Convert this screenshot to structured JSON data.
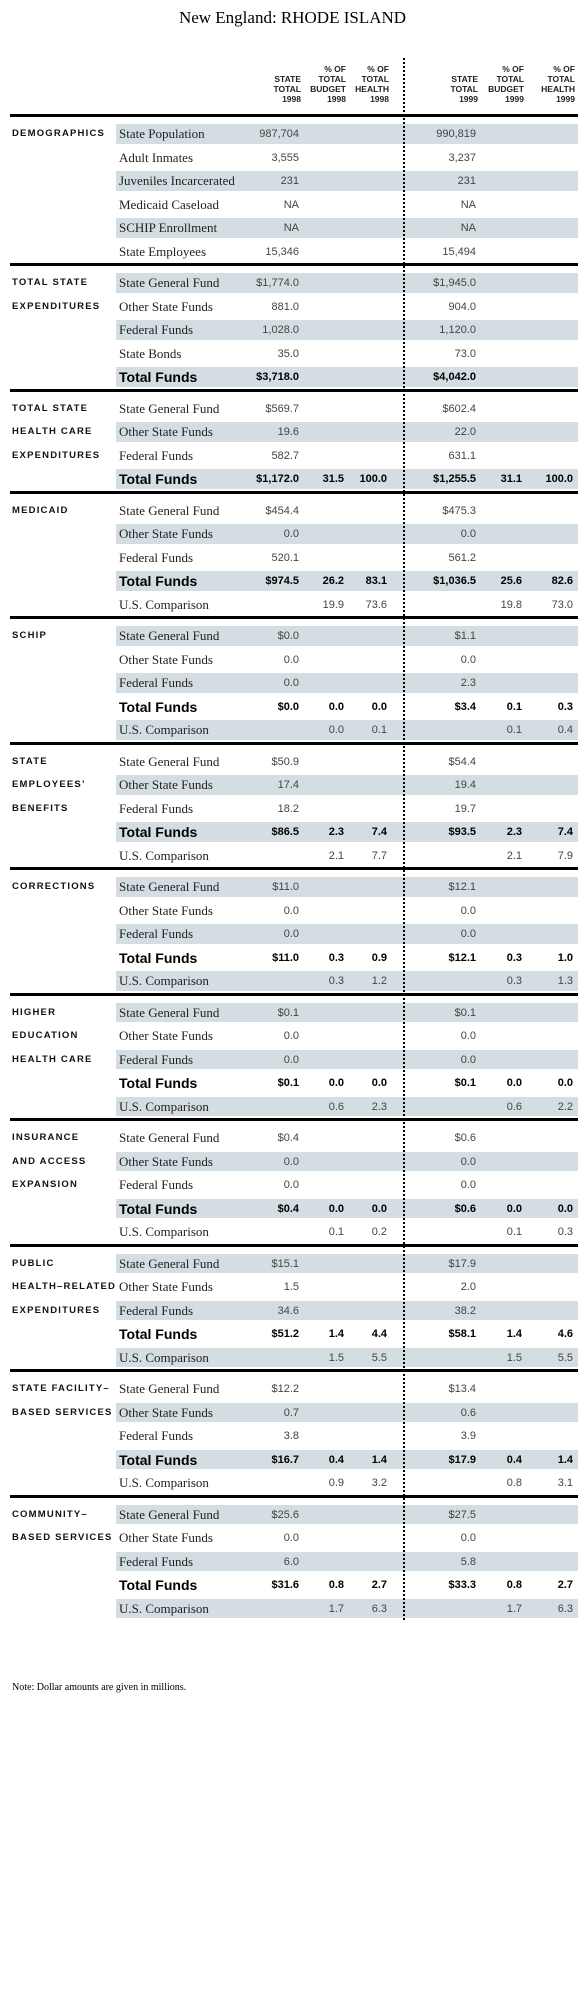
{
  "header": {
    "title": "New England: RHODE ISLAND",
    "columns": [
      [
        "STATE",
        "TOTAL",
        "1998"
      ],
      [
        "% OF",
        "TOTAL",
        "BUDGET",
        "1998"
      ],
      [
        "% OF",
        "TOTAL",
        "HEALTH",
        "1998"
      ],
      [
        "STATE",
        "TOTAL",
        "1999"
      ],
      [
        "% OF",
        "TOTAL",
        "BUDGET",
        "1999"
      ],
      [
        "% OF",
        "TOTAL",
        "HEALTH",
        "1999"
      ]
    ]
  },
  "sections": [
    {
      "label": [
        "DEMOGRAPHICS"
      ],
      "rows": [
        {
          "label": "State Population",
          "shaded": true,
          "cells": [
            "987,704",
            null,
            null,
            "990,819",
            null,
            null
          ]
        },
        {
          "label": "Adult Inmates",
          "shaded": false,
          "cells": [
            "3,555",
            null,
            null,
            "3,237",
            null,
            null
          ]
        },
        {
          "label": "Juveniles Incarcerated",
          "shaded": true,
          "cells": [
            "231",
            null,
            null,
            "231",
            null,
            null
          ]
        },
        {
          "label": "Medicaid Caseload",
          "shaded": false,
          "cells": [
            "NA",
            null,
            null,
            "NA",
            null,
            null
          ]
        },
        {
          "label": "SCHIP Enrollment",
          "shaded": true,
          "cells": [
            "NA",
            null,
            null,
            "NA",
            null,
            null
          ]
        },
        {
          "label": "State Employees",
          "shaded": false,
          "cells": [
            "15,346",
            null,
            null,
            "15,494",
            null,
            null
          ]
        }
      ]
    },
    {
      "label": [
        "TOTAL STATE",
        "EXPENDITURES"
      ],
      "rows": [
        {
          "label": "State General Fund",
          "shaded": true,
          "cells": [
            "$1,774.0",
            null,
            null,
            "$1,945.0",
            null,
            null
          ]
        },
        {
          "label": "Other State Funds",
          "shaded": false,
          "cells": [
            "881.0",
            null,
            null,
            "904.0",
            null,
            null
          ]
        },
        {
          "label": "Federal Funds",
          "shaded": true,
          "cells": [
            "1,028.0",
            null,
            null,
            "1,120.0",
            null,
            null
          ]
        },
        {
          "label": "State Bonds",
          "shaded": false,
          "cells": [
            "35.0",
            null,
            null,
            "73.0",
            null,
            null
          ]
        },
        {
          "label": "Total Funds",
          "shaded": true,
          "total": true,
          "cells": [
            "$3,718.0",
            null,
            null,
            "$4,042.0",
            null,
            null
          ]
        }
      ]
    },
    {
      "label": [
        "TOTAL STATE",
        "HEALTH CARE",
        "EXPENDITURES"
      ],
      "rows": [
        {
          "label": "State General Fund",
          "shaded": false,
          "cells": [
            "$569.7",
            null,
            null,
            "$602.4",
            null,
            null
          ]
        },
        {
          "label": "Other State Funds",
          "shaded": true,
          "cells": [
            "19.6",
            null,
            null,
            "22.0",
            null,
            null
          ]
        },
        {
          "label": "Federal Funds",
          "shaded": false,
          "cells": [
            "582.7",
            null,
            null,
            "631.1",
            null,
            null
          ]
        },
        {
          "label": "Total Funds",
          "shaded": true,
          "total": true,
          "cells": [
            "$1,172.0",
            "31.5",
            "100.0",
            "$1,255.5",
            "31.1",
            "100.0"
          ]
        }
      ]
    },
    {
      "label": [
        "MEDICAID"
      ],
      "rows": [
        {
          "label": "State General Fund",
          "shaded": false,
          "cells": [
            "$454.4",
            null,
            null,
            "$475.3",
            null,
            null
          ]
        },
        {
          "label": "Other State Funds",
          "shaded": true,
          "cells": [
            "0.0",
            null,
            null,
            "0.0",
            null,
            null
          ]
        },
        {
          "label": "Federal Funds",
          "shaded": false,
          "cells": [
            "520.1",
            null,
            null,
            "561.2",
            null,
            null
          ]
        },
        {
          "label": "Total Funds",
          "shaded": true,
          "total": true,
          "cells": [
            "$974.5",
            "26.2",
            "83.1",
            "$1,036.5",
            "25.6",
            "82.6"
          ]
        },
        {
          "label": "U.S. Comparison",
          "shaded": false,
          "cells": [
            null,
            "19.9",
            "73.6",
            null,
            "19.8",
            "73.0"
          ]
        }
      ]
    },
    {
      "label": [
        "SCHIP"
      ],
      "rows": [
        {
          "label": "State General Fund",
          "shaded": true,
          "cells": [
            "$0.0",
            null,
            null,
            "$1.1",
            null,
            null
          ]
        },
        {
          "label": "Other State Funds",
          "shaded": false,
          "cells": [
            "0.0",
            null,
            null,
            "0.0",
            null,
            null
          ]
        },
        {
          "label": "Federal Funds",
          "shaded": true,
          "cells": [
            "0.0",
            null,
            null,
            "2.3",
            null,
            null
          ]
        },
        {
          "label": "Total Funds",
          "shaded": false,
          "total": true,
          "cells": [
            "$0.0",
            "0.0",
            "0.0",
            "$3.4",
            "0.1",
            "0.3"
          ]
        },
        {
          "label": "U.S. Comparison",
          "shaded": true,
          "cells": [
            null,
            "0.0",
            "0.1",
            null,
            "0.1",
            "0.4"
          ]
        }
      ]
    },
    {
      "label": [
        "STATE",
        "EMPLOYEES’",
        "BENEFITS"
      ],
      "rows": [
        {
          "label": "State General Fund",
          "shaded": false,
          "cells": [
            "$50.9",
            null,
            null,
            "$54.4",
            null,
            null
          ]
        },
        {
          "label": "Other State Funds",
          "shaded": true,
          "cells": [
            "17.4",
            null,
            null,
            "19.4",
            null,
            null
          ]
        },
        {
          "label": "Federal Funds",
          "shaded": false,
          "cells": [
            "18.2",
            null,
            null,
            "19.7",
            null,
            null
          ]
        },
        {
          "label": "Total Funds",
          "shaded": true,
          "total": true,
          "cells": [
            "$86.5",
            "2.3",
            "7.4",
            "$93.5",
            "2.3",
            "7.4"
          ]
        },
        {
          "label": "U.S. Comparison",
          "shaded": false,
          "cells": [
            null,
            "2.1",
            "7.7",
            null,
            "2.1",
            "7.9"
          ]
        }
      ]
    },
    {
      "label": [
        "CORRECTIONS"
      ],
      "rows": [
        {
          "label": "State General Fund",
          "shaded": true,
          "cells": [
            "$11.0",
            null,
            null,
            "$12.1",
            null,
            null
          ]
        },
        {
          "label": "Other State Funds",
          "shaded": false,
          "cells": [
            "0.0",
            null,
            null,
            "0.0",
            null,
            null
          ]
        },
        {
          "label": "Federal Funds",
          "shaded": true,
          "cells": [
            "0.0",
            null,
            null,
            "0.0",
            null,
            null
          ]
        },
        {
          "label": "Total Funds",
          "shaded": false,
          "total": true,
          "cells": [
            "$11.0",
            "0.3",
            "0.9",
            "$12.1",
            "0.3",
            "1.0"
          ]
        },
        {
          "label": "U.S. Comparison",
          "shaded": true,
          "cells": [
            null,
            "0.3",
            "1.2",
            null,
            "0.3",
            "1.3"
          ]
        }
      ]
    },
    {
      "label": [
        "HIGHER",
        "EDUCATION",
        "HEALTH CARE"
      ],
      "rows": [
        {
          "label": "State General Fund",
          "shaded": true,
          "cells": [
            "$0.1",
            null,
            null,
            "$0.1",
            null,
            null
          ]
        },
        {
          "label": "Other State Funds",
          "shaded": false,
          "cells": [
            "0.0",
            null,
            null,
            "0.0",
            null,
            null
          ]
        },
        {
          "label": "Federal Funds",
          "shaded": true,
          "cells": [
            "0.0",
            null,
            null,
            "0.0",
            null,
            null
          ]
        },
        {
          "label": "Total Funds",
          "shaded": false,
          "total": true,
          "cells": [
            "$0.1",
            "0.0",
            "0.0",
            "$0.1",
            "0.0",
            "0.0"
          ]
        },
        {
          "label": "U.S. Comparison",
          "shaded": true,
          "cells": [
            null,
            "0.6",
            "2.3",
            null,
            "0.6",
            "2.2"
          ]
        }
      ]
    },
    {
      "label": [
        "INSURANCE",
        "AND ACCESS",
        "EXPANSION"
      ],
      "rows": [
        {
          "label": "State General Fund",
          "shaded": false,
          "cells": [
            "$0.4",
            null,
            null,
            "$0.6",
            null,
            null
          ]
        },
        {
          "label": "Other State Funds",
          "shaded": true,
          "cells": [
            "0.0",
            null,
            null,
            "0.0",
            null,
            null
          ]
        },
        {
          "label": "Federal Funds",
          "shaded": false,
          "cells": [
            "0.0",
            null,
            null,
            "0.0",
            null,
            null
          ]
        },
        {
          "label": "Total Funds",
          "shaded": true,
          "total": true,
          "cells": [
            "$0.4",
            "0.0",
            "0.0",
            "$0.6",
            "0.0",
            "0.0"
          ]
        },
        {
          "label": "U.S. Comparison",
          "shaded": false,
          "cells": [
            null,
            "0.1",
            "0.2",
            null,
            "0.1",
            "0.3"
          ]
        }
      ]
    },
    {
      "label": [
        "PUBLIC",
        "HEALTH–RELATED",
        "EXPENDITURES"
      ],
      "rows": [
        {
          "label": "State General Fund",
          "shaded": true,
          "cells": [
            "$15.1",
            null,
            null,
            "$17.9",
            null,
            null
          ]
        },
        {
          "label": "Other State Funds",
          "shaded": false,
          "cells": [
            "1.5",
            null,
            null,
            "2.0",
            null,
            null
          ]
        },
        {
          "label": "Federal Funds",
          "shaded": true,
          "cells": [
            "34.6",
            null,
            null,
            "38.2",
            null,
            null
          ]
        },
        {
          "label": "Total Funds",
          "shaded": false,
          "total": true,
          "cells": [
            "$51.2",
            "1.4",
            "4.4",
            "$58.1",
            "1.4",
            "4.6"
          ]
        },
        {
          "label": "U.S. Comparison",
          "shaded": true,
          "cells": [
            null,
            "1.5",
            "5.5",
            null,
            "1.5",
            "5.5"
          ]
        }
      ]
    },
    {
      "label": [
        "STATE FACILITY–",
        "BASED SERVICES"
      ],
      "rows": [
        {
          "label": "State General Fund",
          "shaded": false,
          "cells": [
            "$12.2",
            null,
            null,
            "$13.4",
            null,
            null
          ]
        },
        {
          "label": "Other State Funds",
          "shaded": true,
          "cells": [
            "0.7",
            null,
            null,
            "0.6",
            null,
            null
          ]
        },
        {
          "label": "Federal Funds",
          "shaded": false,
          "cells": [
            "3.8",
            null,
            null,
            "3.9",
            null,
            null
          ]
        },
        {
          "label": "Total Funds",
          "shaded": true,
          "total": true,
          "cells": [
            "$16.7",
            "0.4",
            "1.4",
            "$17.9",
            "0.4",
            "1.4"
          ]
        },
        {
          "label": "U.S. Comparison",
          "shaded": false,
          "cells": [
            null,
            "0.9",
            "3.2",
            null,
            "0.8",
            "3.1"
          ]
        }
      ]
    },
    {
      "label": [
        "COMMUNITY–",
        "BASED SERVICES"
      ],
      "rows": [
        {
          "label": "State General Fund",
          "shaded": true,
          "cells": [
            "$25.6",
            null,
            null,
            "$27.5",
            null,
            null
          ]
        },
        {
          "label": "Other State Funds",
          "shaded": false,
          "cells": [
            "0.0",
            null,
            null,
            "0.0",
            null,
            null
          ]
        },
        {
          "label": "Federal Funds",
          "shaded": true,
          "cells": [
            "6.0",
            null,
            null,
            "5.8",
            null,
            null
          ]
        },
        {
          "label": "Total Funds",
          "shaded": false,
          "total": true,
          "cells": [
            "$31.6",
            "0.8",
            "2.7",
            "$33.3",
            "0.8",
            "2.7"
          ]
        },
        {
          "label": "U.S. Comparison",
          "shaded": true,
          "cells": [
            null,
            "1.7",
            "6.3",
            null,
            "1.7",
            "6.3"
          ]
        }
      ]
    }
  ],
  "note": "Note: Dollar amounts are given in millions."
}
